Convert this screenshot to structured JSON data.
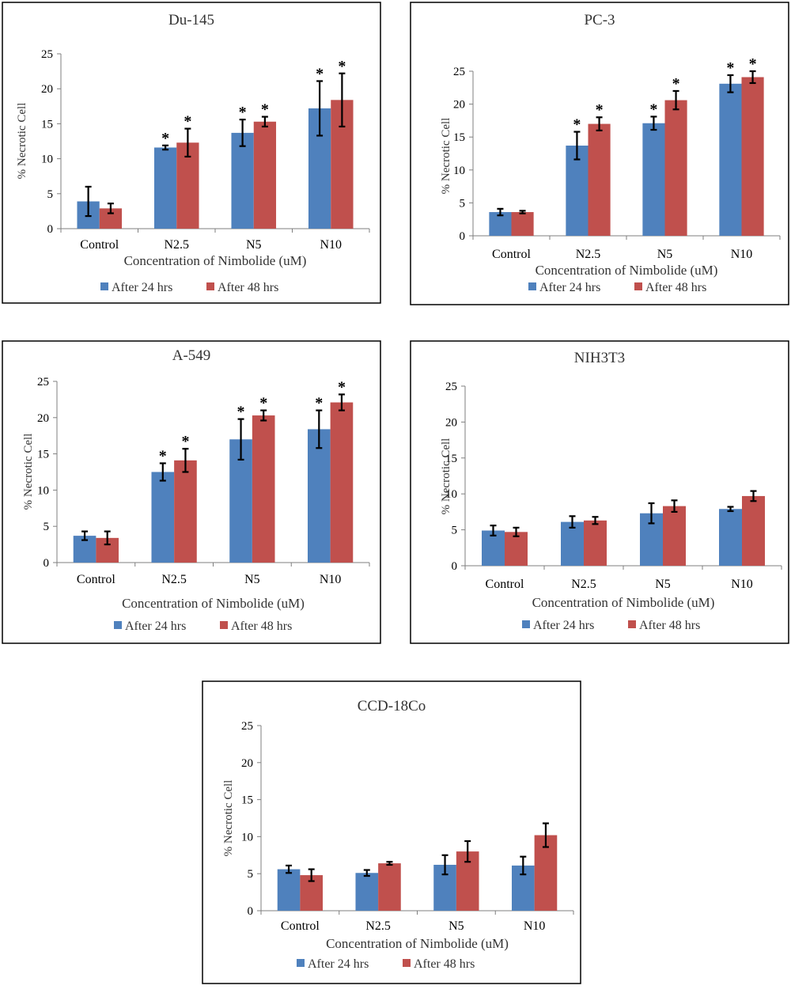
{
  "colors": {
    "after_24": "#4f81bd",
    "after_48": "#c0504d"
  },
  "chart_data": [
    {
      "type": "bar",
      "title": "Du-145",
      "xlabel": "Concentration of Nimbolide (uM)",
      "ylabel": "% Necrotic Cell",
      "ylim": [
        0,
        25
      ],
      "yticks": [
        "0",
        "5",
        "10",
        "15",
        "20",
        "25"
      ],
      "categories": [
        "Control",
        "N2.5",
        "N5",
        "N10"
      ],
      "series": [
        {
          "name": "After 24 hrs",
          "values": [
            3.9,
            11.6,
            13.7,
            17.2
          ],
          "errors": [
            2.1,
            0.3,
            1.9,
            3.9
          ],
          "significant": [
            false,
            true,
            true,
            true
          ]
        },
        {
          "name": "After 48 hrs",
          "values": [
            2.9,
            12.3,
            15.3,
            18.4
          ],
          "errors": [
            0.7,
            2.0,
            0.7,
            3.8
          ],
          "significant": [
            false,
            true,
            true,
            true
          ]
        }
      ],
      "significance_marker": "*",
      "legend": "bottom"
    },
    {
      "type": "bar",
      "title": "PC-3",
      "xlabel": "Concentration of Nimbolide (uM)",
      "ylabel": "% Necrotic Cell",
      "ylim": [
        0,
        25
      ],
      "yticks": [
        "0",
        "5",
        "10",
        "15",
        "20",
        "25"
      ],
      "categories": [
        "Control",
        "N2.5",
        "N5",
        "N10"
      ],
      "series": [
        {
          "name": "After 24 hrs",
          "values": [
            3.6,
            13.7,
            17.1,
            23.1
          ],
          "errors": [
            0.5,
            2.1,
            1.0,
            1.3
          ],
          "significant": [
            false,
            true,
            true,
            true
          ]
        },
        {
          "name": "After 48 hrs",
          "values": [
            3.6,
            17.0,
            20.6,
            24.1
          ],
          "errors": [
            0.2,
            1.0,
            1.4,
            0.9
          ],
          "significant": [
            false,
            true,
            true,
            true
          ]
        }
      ],
      "significance_marker": "*",
      "legend": "bottom"
    },
    {
      "type": "bar",
      "title": "A-549",
      "xlabel": "Concentration of Nimbolide (uM)",
      "ylabel": "% Necrotic Cell",
      "ylim": [
        0,
        25
      ],
      "yticks": [
        "0",
        "5",
        "10",
        "15",
        "20",
        "25"
      ],
      "categories": [
        "Control",
        "N2.5",
        "N5",
        "N10"
      ],
      "series": [
        {
          "name": "After 24 hrs",
          "values": [
            3.7,
            12.5,
            17.0,
            18.4
          ],
          "errors": [
            0.6,
            1.2,
            2.8,
            2.6
          ],
          "significant": [
            false,
            true,
            true,
            true
          ]
        },
        {
          "name": "After 48 hrs",
          "values": [
            3.4,
            14.1,
            20.3,
            22.1
          ],
          "errors": [
            0.9,
            1.6,
            0.7,
            1.1
          ],
          "significant": [
            false,
            true,
            true,
            true
          ]
        }
      ],
      "significance_marker": "*",
      "legend": "bottom"
    },
    {
      "type": "bar",
      "title": "NIH3T3",
      "xlabel": "Concentration of Nimbolide (uM)",
      "ylabel": "% Necrotic Cell",
      "ylim": [
        0,
        25
      ],
      "yticks": [
        "0",
        "5",
        "10",
        "15",
        "20",
        "25"
      ],
      "categories": [
        "Control",
        "N2.5",
        "N5",
        "N10"
      ],
      "series": [
        {
          "name": "After 24 hrs",
          "values": [
            4.9,
            6.1,
            7.3,
            7.9
          ],
          "errors": [
            0.7,
            0.8,
            1.4,
            0.3
          ],
          "significant": [
            false,
            false,
            false,
            false
          ]
        },
        {
          "name": "After 48 hrs",
          "values": [
            4.7,
            6.3,
            8.3,
            9.7
          ],
          "errors": [
            0.6,
            0.5,
            0.8,
            0.7
          ],
          "significant": [
            false,
            false,
            false,
            false
          ]
        }
      ],
      "significance_marker": "*",
      "legend": "bottom"
    },
    {
      "type": "bar",
      "title": "CCD-18Co",
      "xlabel": "Concentration of Nimbolide (uM)",
      "ylabel": "% Necrotic Cell",
      "ylim": [
        0,
        25
      ],
      "yticks": [
        "0",
        "5",
        "10",
        "15",
        "20",
        "25"
      ],
      "categories": [
        "Control",
        "N2.5",
        "N5",
        "N10"
      ],
      "series": [
        {
          "name": "After 24 hrs",
          "values": [
            5.6,
            5.1,
            6.2,
            6.1
          ],
          "errors": [
            0.5,
            0.4,
            1.3,
            1.2
          ],
          "significant": [
            false,
            false,
            false,
            false
          ]
        },
        {
          "name": "After 48 hrs",
          "values": [
            4.8,
            6.4,
            8.0,
            10.2
          ],
          "errors": [
            0.8,
            0.2,
            1.4,
            1.6
          ],
          "significant": [
            false,
            false,
            false,
            false
          ]
        }
      ],
      "significance_marker": "*",
      "legend": "bottom"
    }
  ]
}
